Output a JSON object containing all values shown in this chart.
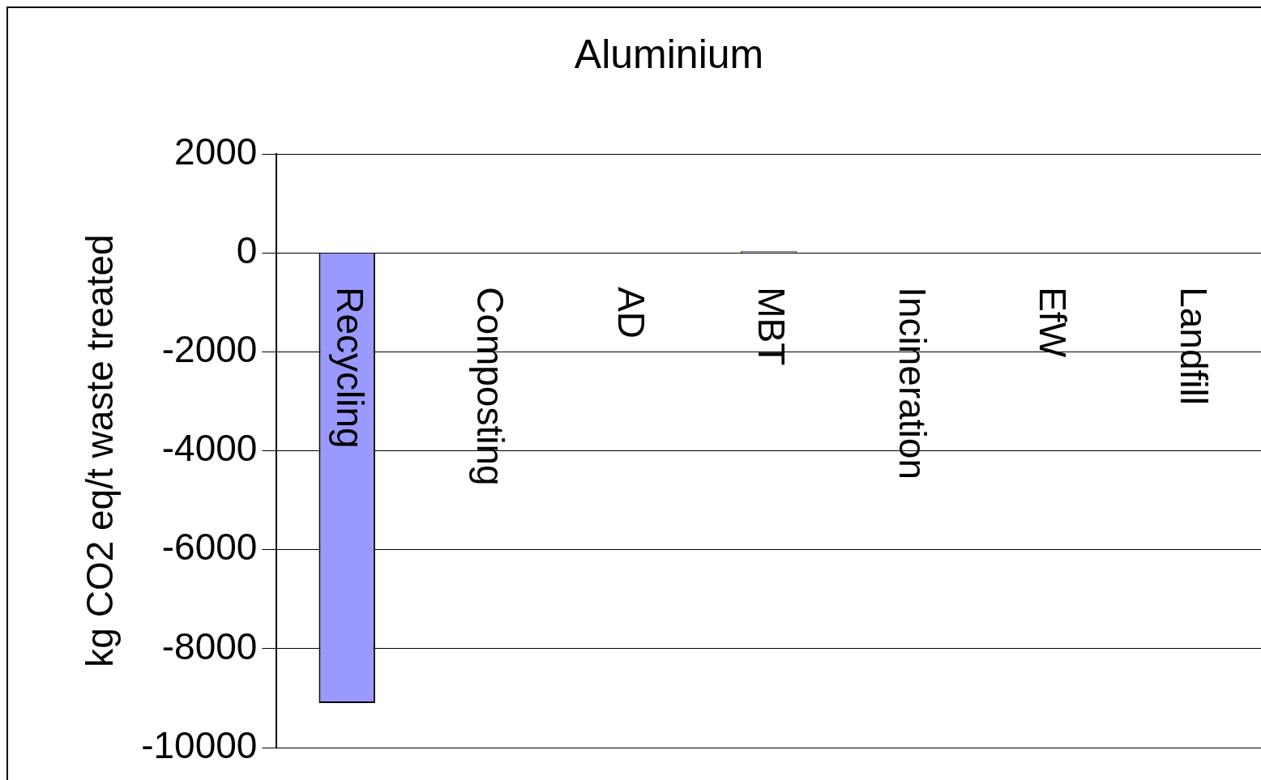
{
  "chart_data": {
    "type": "bar",
    "title": "Aluminium",
    "ylabel": "kg CO2 eq/t waste treated",
    "categories": [
      "Recycling",
      "Composting",
      "AD",
      "MBT",
      "Incineration",
      "EfW",
      "Landfill"
    ],
    "values": [
      -9100,
      null,
      null,
      30,
      null,
      null,
      null
    ],
    "color": "#9999ff",
    "ylim": [
      -10000,
      2000
    ],
    "yticks": [
      -10000,
      -8000,
      -6000,
      -4000,
      -2000,
      0,
      2000
    ],
    "grid": "y"
  }
}
